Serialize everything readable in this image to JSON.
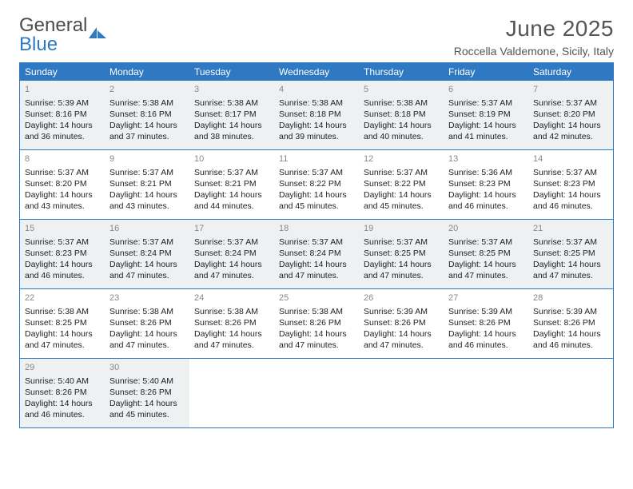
{
  "brand": {
    "word1": "General",
    "word2": "Blue"
  },
  "title": "June 2025",
  "location": "Roccella Valdemone, Sicily, Italy",
  "colors": {
    "accent": "#2f78c2",
    "shade": "#eef0f2",
    "text": "#222222",
    "muted": "#888888"
  },
  "weekdays": [
    "Sunday",
    "Monday",
    "Tuesday",
    "Wednesday",
    "Thursday",
    "Friday",
    "Saturday"
  ],
  "shadedRows": [
    0,
    2,
    4
  ],
  "days": [
    {
      "n": 1,
      "sr": "5:39 AM",
      "ss": "8:16 PM",
      "dl": "14 hours and 36 minutes."
    },
    {
      "n": 2,
      "sr": "5:38 AM",
      "ss": "8:16 PM",
      "dl": "14 hours and 37 minutes."
    },
    {
      "n": 3,
      "sr": "5:38 AM",
      "ss": "8:17 PM",
      "dl": "14 hours and 38 minutes."
    },
    {
      "n": 4,
      "sr": "5:38 AM",
      "ss": "8:18 PM",
      "dl": "14 hours and 39 minutes."
    },
    {
      "n": 5,
      "sr": "5:38 AM",
      "ss": "8:18 PM",
      "dl": "14 hours and 40 minutes."
    },
    {
      "n": 6,
      "sr": "5:37 AM",
      "ss": "8:19 PM",
      "dl": "14 hours and 41 minutes."
    },
    {
      "n": 7,
      "sr": "5:37 AM",
      "ss": "8:20 PM",
      "dl": "14 hours and 42 minutes."
    },
    {
      "n": 8,
      "sr": "5:37 AM",
      "ss": "8:20 PM",
      "dl": "14 hours and 43 minutes."
    },
    {
      "n": 9,
      "sr": "5:37 AM",
      "ss": "8:21 PM",
      "dl": "14 hours and 43 minutes."
    },
    {
      "n": 10,
      "sr": "5:37 AM",
      "ss": "8:21 PM",
      "dl": "14 hours and 44 minutes."
    },
    {
      "n": 11,
      "sr": "5:37 AM",
      "ss": "8:22 PM",
      "dl": "14 hours and 45 minutes."
    },
    {
      "n": 12,
      "sr": "5:37 AM",
      "ss": "8:22 PM",
      "dl": "14 hours and 45 minutes."
    },
    {
      "n": 13,
      "sr": "5:36 AM",
      "ss": "8:23 PM",
      "dl": "14 hours and 46 minutes."
    },
    {
      "n": 14,
      "sr": "5:37 AM",
      "ss": "8:23 PM",
      "dl": "14 hours and 46 minutes."
    },
    {
      "n": 15,
      "sr": "5:37 AM",
      "ss": "8:23 PM",
      "dl": "14 hours and 46 minutes."
    },
    {
      "n": 16,
      "sr": "5:37 AM",
      "ss": "8:24 PM",
      "dl": "14 hours and 47 minutes."
    },
    {
      "n": 17,
      "sr": "5:37 AM",
      "ss": "8:24 PM",
      "dl": "14 hours and 47 minutes."
    },
    {
      "n": 18,
      "sr": "5:37 AM",
      "ss": "8:24 PM",
      "dl": "14 hours and 47 minutes."
    },
    {
      "n": 19,
      "sr": "5:37 AM",
      "ss": "8:25 PM",
      "dl": "14 hours and 47 minutes."
    },
    {
      "n": 20,
      "sr": "5:37 AM",
      "ss": "8:25 PM",
      "dl": "14 hours and 47 minutes."
    },
    {
      "n": 21,
      "sr": "5:37 AM",
      "ss": "8:25 PM",
      "dl": "14 hours and 47 minutes."
    },
    {
      "n": 22,
      "sr": "5:38 AM",
      "ss": "8:25 PM",
      "dl": "14 hours and 47 minutes."
    },
    {
      "n": 23,
      "sr": "5:38 AM",
      "ss": "8:26 PM",
      "dl": "14 hours and 47 minutes."
    },
    {
      "n": 24,
      "sr": "5:38 AM",
      "ss": "8:26 PM",
      "dl": "14 hours and 47 minutes."
    },
    {
      "n": 25,
      "sr": "5:38 AM",
      "ss": "8:26 PM",
      "dl": "14 hours and 47 minutes."
    },
    {
      "n": 26,
      "sr": "5:39 AM",
      "ss": "8:26 PM",
      "dl": "14 hours and 47 minutes."
    },
    {
      "n": 27,
      "sr": "5:39 AM",
      "ss": "8:26 PM",
      "dl": "14 hours and 46 minutes."
    },
    {
      "n": 28,
      "sr": "5:39 AM",
      "ss": "8:26 PM",
      "dl": "14 hours and 46 minutes."
    },
    {
      "n": 29,
      "sr": "5:40 AM",
      "ss": "8:26 PM",
      "dl": "14 hours and 46 minutes."
    },
    {
      "n": 30,
      "sr": "5:40 AM",
      "ss": "8:26 PM",
      "dl": "14 hours and 45 minutes."
    }
  ],
  "labels": {
    "sunrise": "Sunrise:",
    "sunset": "Sunset:",
    "daylight": "Daylight:"
  }
}
